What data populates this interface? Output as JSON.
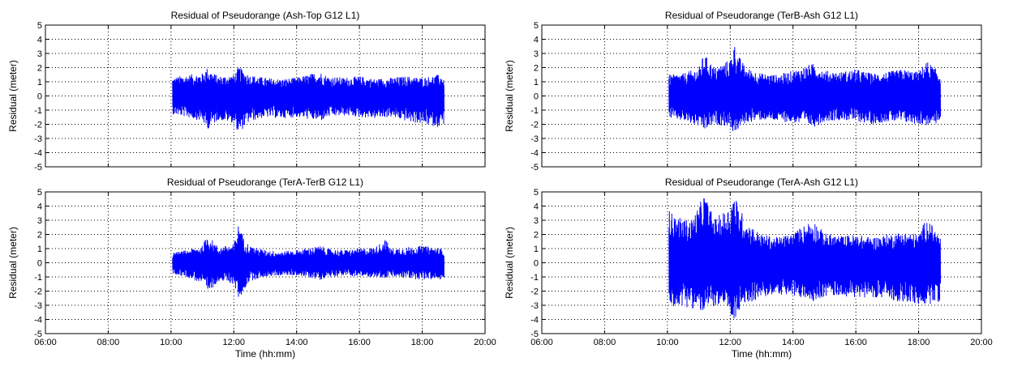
{
  "chart_data": [
    {
      "type": "line",
      "title": "Residual of Pseudorange (Ash-Top G12 L1)",
      "xlabel": "",
      "ylabel": "Residual (meter)",
      "xlim": [
        "06:00",
        "20:00"
      ],
      "ylim": [
        -5,
        5
      ],
      "xticks": [],
      "yticks": [
        "5",
        "4",
        "3",
        "2",
        "1",
        "0",
        "-1",
        "-2",
        "-3",
        "-4",
        "-5"
      ],
      "grid": true,
      "color": "#0000ff",
      "series": [
        {
          "x_start": "10:03",
          "x_end": "18:42",
          "x": [
            "10:03",
            "10:30",
            "11:00",
            "11:08",
            "11:30",
            "12:00",
            "12:10",
            "12:15",
            "12:30",
            "13:00",
            "13:30",
            "14:00",
            "14:30",
            "14:45",
            "15:00",
            "15:30",
            "16:00",
            "16:30",
            "17:00",
            "17:30",
            "18:00",
            "18:30",
            "18:42"
          ],
          "upper": [
            1.3,
            1.5,
            1.6,
            2.0,
            1.4,
            1.5,
            2.1,
            1.9,
            1.5,
            1.3,
            1.2,
            1.3,
            1.6,
            1.7,
            1.4,
            1.3,
            1.4,
            1.2,
            1.3,
            1.4,
            1.3,
            1.5,
            1.4
          ],
          "lower": [
            -1.3,
            -1.5,
            -1.8,
            -2.4,
            -1.7,
            -1.9,
            -2.8,
            -2.4,
            -1.8,
            -1.5,
            -1.6,
            -1.5,
            -1.7,
            -1.8,
            -1.5,
            -1.4,
            -1.5,
            -1.6,
            -1.5,
            -1.8,
            -2.0,
            -2.2,
            -2.0
          ]
        }
      ]
    },
    {
      "type": "line",
      "title": "Residual of Pseudorange (TerB-Ash G12 L1)",
      "xlabel": "",
      "ylabel": "Residual (meter)",
      "xlim": [
        "06:00",
        "20:00"
      ],
      "ylim": [
        -5,
        5
      ],
      "xticks": [],
      "yticks": [
        "5",
        "4",
        "3",
        "2",
        "1",
        "0",
        "-1",
        "-2",
        "-3",
        "-4",
        "-5"
      ],
      "grid": true,
      "color": "#0000ff",
      "series": [
        {
          "x_start": "10:03",
          "x_end": "18:42",
          "x": [
            "10:03",
            "10:30",
            "11:00",
            "11:10",
            "11:30",
            "12:00",
            "12:07",
            "12:15",
            "12:30",
            "13:00",
            "13:30",
            "14:00",
            "14:30",
            "14:40",
            "15:00",
            "15:30",
            "16:00",
            "16:30",
            "17:00",
            "17:30",
            "18:00",
            "18:15",
            "18:42"
          ],
          "upper": [
            1.5,
            1.6,
            2.0,
            3.0,
            2.0,
            2.6,
            3.8,
            2.9,
            2.0,
            1.6,
            1.5,
            1.8,
            2.2,
            2.3,
            1.8,
            1.7,
            1.9,
            1.6,
            1.7,
            1.9,
            1.7,
            2.5,
            1.6
          ],
          "lower": [
            -1.6,
            -1.8,
            -2.2,
            -2.5,
            -2.0,
            -2.2,
            -2.7,
            -2.4,
            -1.9,
            -1.7,
            -1.8,
            -1.9,
            -2.1,
            -2.2,
            -1.8,
            -1.7,
            -1.8,
            -2.0,
            -1.8,
            -1.9,
            -2.0,
            -2.1,
            -1.9
          ]
        }
      ]
    },
    {
      "type": "line",
      "title": "Residual of Pseudorange (TerA-TerB G12 L1)",
      "xlabel": "Time (hh:mm)",
      "ylabel": "Residual (meter)",
      "xlim": [
        "06:00",
        "20:00"
      ],
      "ylim": [
        -5,
        5
      ],
      "xticks": [
        "06:00",
        "08:00",
        "10:00",
        "12:00",
        "14:00",
        "16:00",
        "18:00",
        "20:00"
      ],
      "yticks": [
        "5",
        "4",
        "3",
        "2",
        "1",
        "0",
        "-1",
        "-2",
        "-3",
        "-4",
        "-5"
      ],
      "grid": true,
      "color": "#0000ff",
      "series": [
        {
          "x_start": "10:03",
          "x_end": "18:42",
          "x": [
            "10:03",
            "10:30",
            "11:00",
            "11:10",
            "11:30",
            "12:00",
            "12:10",
            "12:18",
            "12:30",
            "13:00",
            "13:30",
            "14:00",
            "14:30",
            "14:45",
            "15:00",
            "15:30",
            "16:00",
            "16:30",
            "16:50",
            "17:00",
            "17:30",
            "18:00",
            "18:42"
          ],
          "upper": [
            0.7,
            0.9,
            1.2,
            2.0,
            1.1,
            1.3,
            2.9,
            1.8,
            1.2,
            0.9,
            0.8,
            0.9,
            1.1,
            1.2,
            1.0,
            0.9,
            1.0,
            1.1,
            1.7,
            1.0,
            1.1,
            1.2,
            1.0
          ],
          "lower": [
            -0.8,
            -1.0,
            -1.5,
            -2.2,
            -1.3,
            -1.5,
            -2.7,
            -2.0,
            -1.3,
            -1.0,
            -0.9,
            -0.9,
            -1.1,
            -1.2,
            -1.0,
            -0.9,
            -1.0,
            -1.0,
            -1.1,
            -1.0,
            -1.1,
            -1.2,
            -1.2
          ]
        }
      ]
    },
    {
      "type": "line",
      "title": "Residual of Pseudorange (TerA-Ash G12 L1)",
      "xlabel": "Time (hh:mm)",
      "ylabel": "Residual (meter)",
      "xlim": [
        "06:00",
        "20:00"
      ],
      "ylim": [
        -5,
        5
      ],
      "xticks": [
        "06:00",
        "08:00",
        "10:00",
        "12:00",
        "14:00",
        "16:00",
        "18:00",
        "20:00"
      ],
      "yticks": [
        "5",
        "4",
        "3",
        "2",
        "1",
        "0",
        "-1",
        "-2",
        "-3",
        "-4",
        "-5"
      ],
      "grid": true,
      "color": "#0000ff",
      "series": [
        {
          "x_start": "10:03",
          "x_end": "18:42",
          "x": [
            "10:03",
            "10:20",
            "10:45",
            "11:00",
            "11:10",
            "11:30",
            "12:00",
            "12:05",
            "12:15",
            "12:30",
            "13:00",
            "13:30",
            "14:00",
            "14:30",
            "14:40",
            "15:00",
            "15:30",
            "16:00",
            "16:30",
            "17:00",
            "17:30",
            "18:00",
            "18:15",
            "18:42"
          ],
          "upper": [
            3.7,
            3.2,
            3.0,
            4.0,
            4.9,
            3.1,
            4.0,
            5.0,
            4.2,
            2.9,
            2.0,
            1.8,
            2.1,
            2.9,
            3.0,
            2.1,
            1.9,
            2.0,
            1.8,
            2.0,
            2.2,
            2.0,
            3.2,
            1.8
          ],
          "lower": [
            -3.2,
            -3.0,
            -3.2,
            -3.4,
            -3.6,
            -3.0,
            -3.5,
            -4.4,
            -3.6,
            -2.9,
            -2.5,
            -2.2,
            -2.4,
            -2.6,
            -2.7,
            -2.4,
            -2.3,
            -2.5,
            -2.4,
            -2.6,
            -2.8,
            -3.0,
            -3.0,
            -2.7
          ]
        }
      ]
    }
  ]
}
